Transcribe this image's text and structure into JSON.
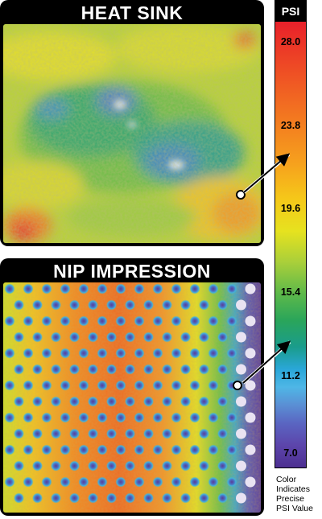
{
  "panels": [
    {
      "title": "HEAT SINK"
    },
    {
      "title": "NIP IMPRESSION"
    }
  ],
  "scale": {
    "header": "PSI",
    "ticks": [
      "28.0",
      "23.8",
      "19.6",
      "15.4",
      "11.2",
      "7.0"
    ],
    "note": [
      "Color",
      "Indicates",
      "Precise",
      "PSI Value"
    ]
  }
}
